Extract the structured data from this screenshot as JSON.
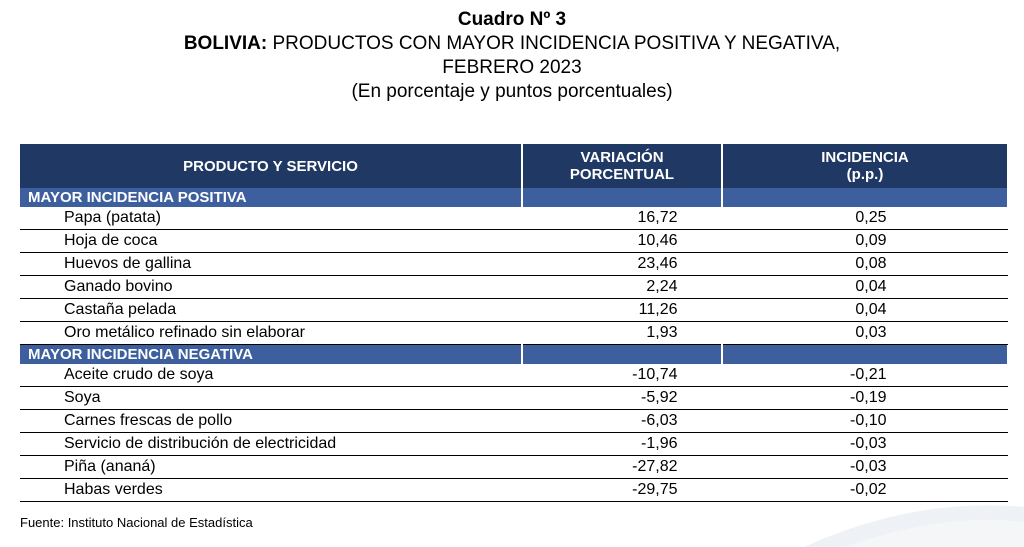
{
  "title": {
    "line1": "Cuadro Nº 3",
    "line2_bold": "BOLIVIA:",
    "line2_rest": " PRODUCTOS CON MAYOR INCIDENCIA POSITIVA Y NEGATIVA,",
    "line3": "FEBRERO 2023",
    "line4": "(En porcentaje y puntos porcentuales)"
  },
  "table": {
    "headers": {
      "product_line1": "PRODUCTO Y SERVICIO",
      "variation_line1": "VARIACIÓN",
      "variation_line2": "PORCENTUAL",
      "incidence_line1": "INCIDENCIA",
      "incidence_line2": "(p.p.)"
    },
    "sections": [
      {
        "label": "MAYOR INCIDENCIA POSITIVA",
        "rows": [
          {
            "name": "Papa (patata)",
            "variation": "16,72",
            "incidence": "0,25"
          },
          {
            "name": "Hoja de coca",
            "variation": "10,46",
            "incidence": "0,09"
          },
          {
            "name": "Huevos de gallina",
            "variation": "23,46",
            "incidence": "0,08"
          },
          {
            "name": "Ganado bovino",
            "variation": "2,24",
            "incidence": "0,04"
          },
          {
            "name": "Castaña pelada",
            "variation": "11,26",
            "incidence": "0,04"
          },
          {
            "name": "Oro metálico refinado sin elaborar",
            "variation": "1,93",
            "incidence": "0,03"
          }
        ]
      },
      {
        "label": "MAYOR INCIDENCIA NEGATIVA",
        "rows": [
          {
            "name": "Aceite crudo de soya",
            "variation": "-10,74",
            "incidence": "-0,21"
          },
          {
            "name": "Soya",
            "variation": "-5,92",
            "incidence": "-0,19"
          },
          {
            "name": "Carnes frescas de pollo",
            "variation": "-6,03",
            "incidence": "-0,10"
          },
          {
            "name": "Servicio de distribución de electricidad",
            "variation": "-1,96",
            "incidence": "-0,03"
          },
          {
            "name": "Piña (ananá)",
            "variation": "-27,82",
            "incidence": "-0,03"
          },
          {
            "name": "Habas verdes",
            "variation": "-29,75",
            "incidence": "-0,02"
          }
        ]
      }
    ]
  },
  "source": "Fuente: Instituto Nacional de Estadística",
  "colors": {
    "header_bg": "#1f3864",
    "section_bg": "#3d5f9e"
  }
}
